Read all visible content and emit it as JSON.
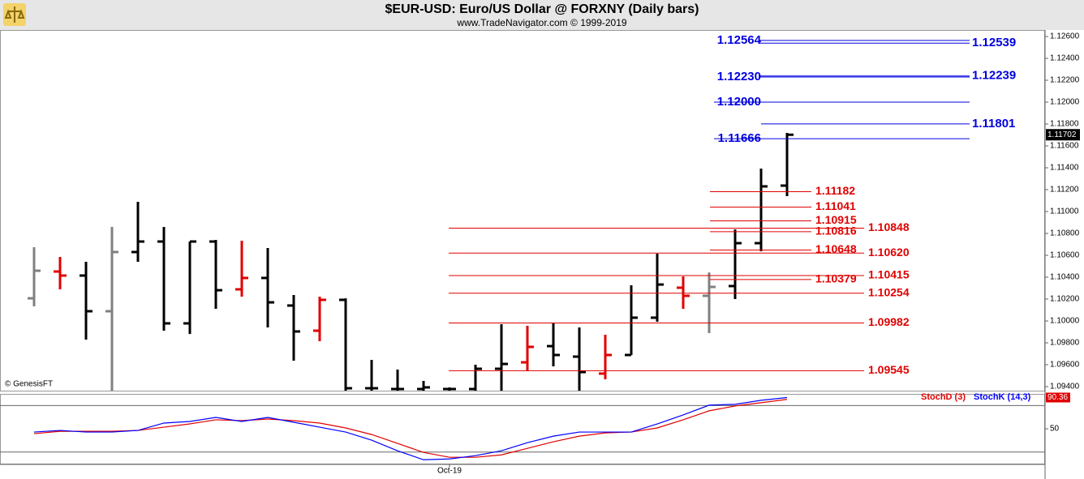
{
  "chart_data": [
    {
      "type": "ohlc",
      "title": "$EUR-USD:  Euro/US Dollar @ FORXNY  (Daily bars)",
      "subtitle": "www.TradeNavigator.com © 1999-2019",
      "watermark": "© GenesisFT",
      "open": [
        1.10207,
        1.10452,
        1.10415,
        1.10089,
        1.1063,
        1.10726,
        1.09978,
        1.10726,
        1.10289,
        1.10393,
        1.10141,
        1.09911,
        1.10193,
        1.09385,
        1.09378,
        1.09378,
        1.09378,
        1.09378,
        1.09563,
        1.09622,
        1.0977,
        1.09674,
        1.09519,
        1.09689,
        1.1003,
        1.10304,
        1.1023,
        1.10319,
        1.10711,
        1.11237
      ],
      "high": [
        1.10674,
        1.10585,
        1.10541,
        1.10859,
        1.11089,
        1.10859,
        1.10726,
        1.10741,
        1.10733,
        1.10667,
        1.10237,
        1.10222,
        1.10207,
        1.09644,
        1.09556,
        1.09452,
        1.09393,
        1.096,
        1.0997,
        1.09956,
        1.09978,
        1.09941,
        1.09874,
        1.10326,
        1.10615,
        1.10407,
        1.10444,
        1.10837,
        1.11393,
        1.11719
      ],
      "low": [
        1.10133,
        1.10289,
        1.0983,
        1.093,
        1.10541,
        1.09911,
        1.09881,
        1.10111,
        1.10222,
        1.09941,
        1.09637,
        1.09815,
        1.093,
        1.093,
        1.092,
        1.092,
        1.092,
        1.093,
        1.093,
        1.09541,
        1.09585,
        1.0936,
        1.09467,
        1.09689,
        1.09993,
        1.10111,
        1.09889,
        1.102,
        1.10637,
        1.11141
      ],
      "close": [
        1.10459,
        1.10415,
        1.10089,
        1.1063,
        1.10726,
        1.09978,
        1.10726,
        1.10281,
        1.10393,
        1.1017,
        1.09904,
        1.10193,
        1.09385,
        1.09385,
        1.09378,
        1.09393,
        1.09378,
        1.09563,
        1.09607,
        1.09763,
        1.09689,
        1.09533,
        1.09689,
        1.1003,
        1.10333,
        1.1023,
        1.10311,
        1.10711,
        1.1123,
        1.11702
      ],
      "colors": [
        "#808080",
        "#e00000",
        "#000000",
        "#808080",
        "#000000",
        "#000000",
        "#000000",
        "#000000",
        "#e00000",
        "#000000",
        "#000000",
        "#e00000",
        "#000000",
        "#000000",
        "#000000",
        "#000000",
        "#000000",
        "#000000",
        "#000000",
        "#e00000",
        "#000000",
        "#000000",
        "#e00000",
        "#000000",
        "#000000",
        "#e00000",
        "#808080",
        "#000000",
        "#000000",
        "#000000"
      ],
      "ylim": [
        1.09363,
        1.12652
      ],
      "yticks": [
        {
          "value": 1.126,
          "label": "1.12600"
        },
        {
          "value": 1.124,
          "label": "1.12400"
        },
        {
          "value": 1.122,
          "label": "1.12200"
        },
        {
          "value": 1.12,
          "label": "1.12000"
        },
        {
          "value": 1.118,
          "label": "1.11800"
        },
        {
          "value": 1.116,
          "label": "1.11600"
        },
        {
          "value": 1.114,
          "label": "1.11400"
        },
        {
          "value": 1.112,
          "label": "1.11200"
        },
        {
          "value": 1.11,
          "label": "1.11000"
        },
        {
          "value": 1.108,
          "label": "1.10800"
        },
        {
          "value": 1.106,
          "label": "1.10600"
        },
        {
          "value": 1.104,
          "label": "1.10400"
        },
        {
          "value": 1.102,
          "label": "1.10200"
        },
        {
          "value": 1.1,
          "label": "1.10000"
        },
        {
          "value": 1.098,
          "label": "1.09800"
        },
        {
          "value": 1.096,
          "label": "1.09600"
        },
        {
          "value": 1.094,
          "label": "1.09400"
        }
      ],
      "last_price": {
        "value": 1.11702,
        "label": "1.11702"
      },
      "levels": [
        {
          "value": 1.12564,
          "label": "1.12564",
          "color": "#0000e0"
        },
        {
          "value": 1.12539,
          "label": "1.12539",
          "color": "#0000e0"
        },
        {
          "value": 1.1223,
          "label": "1.12230",
          "color": "#0000e0"
        },
        {
          "value": 1.12239,
          "label": "1.12239",
          "color": "#0000e0"
        },
        {
          "value": 1.12,
          "label": "1.12000",
          "color": "#0000e0"
        },
        {
          "value": 1.11801,
          "label": "1.11801",
          "color": "#0000e0"
        },
        {
          "value": 1.11666,
          "label": "1.11666",
          "color": "#0000e0"
        },
        {
          "value": 1.11182,
          "label": "1.11182",
          "color": "#e00000"
        },
        {
          "value": 1.11041,
          "label": "1.11041",
          "color": "#e00000"
        },
        {
          "value": 1.10915,
          "label": "1.10915",
          "color": "#e00000"
        },
        {
          "value": 1.10848,
          "label": "1.10848",
          "color": "#e00000"
        },
        {
          "value": 1.10816,
          "label": "1.10816",
          "color": "#e00000"
        },
        {
          "value": 1.10648,
          "label": "1.10648",
          "color": "#e00000"
        },
        {
          "value": 1.1062,
          "label": "1.10620",
          "color": "#e00000"
        },
        {
          "value": 1.10415,
          "label": "1.10415",
          "color": "#e00000"
        },
        {
          "value": 1.10379,
          "label": "1.10379",
          "color": "#e00000"
        },
        {
          "value": 1.10254,
          "label": "1.10254",
          "color": "#e00000"
        },
        {
          "value": 1.09982,
          "label": "1.09982",
          "color": "#e00000"
        },
        {
          "value": 1.09545,
          "label": "1.09545",
          "color": "#e00000"
        }
      ]
    },
    {
      "type": "line",
      "categories": [
        null,
        null,
        null,
        null,
        null,
        null,
        null,
        null,
        null,
        null,
        null,
        null,
        null,
        null,
        null,
        null,
        "Oct-19",
        null,
        null,
        null,
        null,
        null,
        null,
        null,
        null,
        null,
        null,
        null,
        null,
        null
      ],
      "series": [
        {
          "name": "StochD (3)",
          "color": "#e00000",
          "values": [
            43.7,
            46.8,
            46.8,
            46.8,
            47.9,
            52.1,
            56.3,
            61.6,
            60.5,
            62.6,
            60.5,
            57.4,
            51.1,
            42.6,
            31.1,
            19.5,
            13.2,
            13.2,
            16.3,
            24.7,
            33.2,
            40.5,
            44.7,
            45.8,
            51.1,
            61.6,
            73.2,
            79.5,
            83.7,
            88
          ]
        },
        {
          "name": "StochK (14,3)",
          "color": "#0000ff",
          "values": [
            45.8,
            47.9,
            45.8,
            45.8,
            47.9,
            57.4,
            59.5,
            64.7,
            59.5,
            64.7,
            58.4,
            52.1,
            45.8,
            35.3,
            21.6,
            10,
            11.1,
            15.3,
            21.6,
            32.1,
            40.5,
            45.8,
            45.8,
            45.8,
            56.3,
            67.9,
            80.5,
            81.6,
            86.8,
            90.36
          ]
        }
      ],
      "ylim": [
        4,
        94
      ],
      "yticks": [
        50
      ],
      "levels": [
        20,
        80
      ],
      "last_value": {
        "value": 90.36,
        "label": "90.36"
      }
    }
  ]
}
